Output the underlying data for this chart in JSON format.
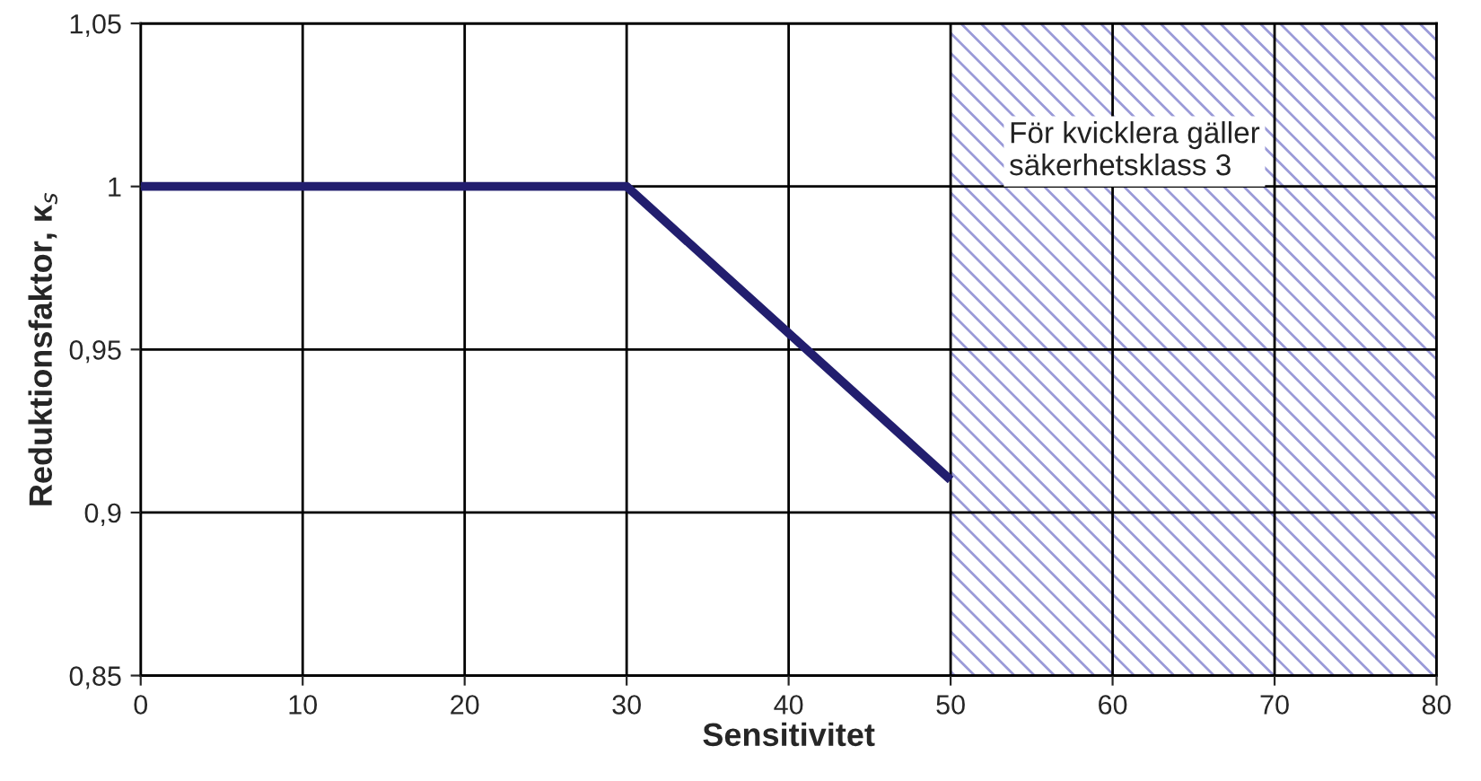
{
  "chart_data": {
    "type": "line",
    "xlabel": "Sensitivitet",
    "ylabel": "Reduktionsfaktor, κ$_{s}$",
    "x": [
      0,
      30,
      50
    ],
    "series": [
      {
        "color": "#221e6e",
        "values": [
          1,
          1,
          0.91
        ]
      }
    ],
    "xlim": [
      0,
      80
    ],
    "xticks": [
      0,
      10,
      20,
      30,
      40,
      50,
      60,
      70,
      80
    ],
    "ylim": [
      0.85,
      1.05
    ],
    "yticks": [
      {
        "value": 0.85,
        "label": "0,85"
      },
      {
        "value": 0.9,
        "label": "0,9"
      },
      {
        "value": 0.95,
        "label": "0,95"
      },
      {
        "value": 1,
        "label": "1"
      },
      {
        "value": 1.05,
        "label": "1,05"
      }
    ],
    "bands": [
      {
        "axis": "x",
        "from": 50,
        "to": 80,
        "color": "#9a9ad8"
      }
    ],
    "annotations": [
      "För kvicklera gäller\nsäkerhetsklass 3"
    ],
    "grid": true,
    "marker": "none",
    "line_style": "solid"
  }
}
